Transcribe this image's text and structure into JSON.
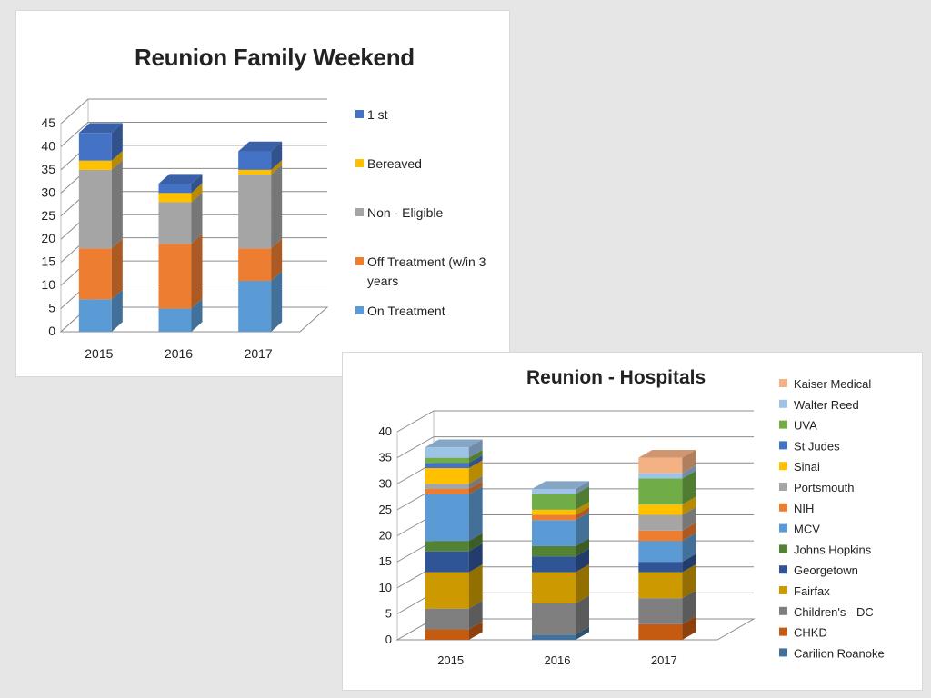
{
  "chart_data": [
    {
      "type": "bar",
      "stacked": true,
      "three_d": true,
      "title": "Reunion Family Weekend",
      "categories": [
        "2015",
        "2016",
        "2017"
      ],
      "ylim": [
        0,
        45
      ],
      "yticks": [
        "0",
        "5",
        "10",
        "15",
        "20",
        "25",
        "30",
        "35",
        "40",
        "45"
      ],
      "grid": true,
      "legend_position": "right",
      "series": [
        {
          "name": "On Treatment",
          "color": "#5b9bd5",
          "values": [
            7,
            5,
            11
          ]
        },
        {
          "name": "Off Treatment (w/in 3 years",
          "color": "#ed7d31",
          "values": [
            11,
            14,
            7
          ]
        },
        {
          "name": "Non - Eligible",
          "color": "#a5a5a5",
          "values": [
            17,
            9,
            16
          ]
        },
        {
          "name": "Bereaved",
          "color": "#ffc000",
          "values": [
            2,
            2,
            1
          ]
        },
        {
          "name": "1 st",
          "color": "#4472c4",
          "values": [
            6,
            2,
            4
          ]
        }
      ]
    },
    {
      "type": "bar",
      "stacked": true,
      "three_d": true,
      "title": "Reunion - Hospitals",
      "categories": [
        "2015",
        "2016",
        "2017"
      ],
      "ylim": [
        0,
        40
      ],
      "yticks": [
        "0",
        "5",
        "10",
        "15",
        "20",
        "25",
        "30",
        "35",
        "40"
      ],
      "grid": true,
      "legend_position": "right",
      "series": [
        {
          "name": "Carilion Roanoke",
          "color": "#41719c",
          "values": [
            0,
            1,
            0
          ]
        },
        {
          "name": "CHKD",
          "color": "#c55a11",
          "values": [
            2,
            0,
            3
          ]
        },
        {
          "name": "Children's - DC",
          "color": "#7f7f7f",
          "values": [
            4,
            6,
            5
          ]
        },
        {
          "name": "Fairfax",
          "color": "#cc9900",
          "values": [
            7,
            6,
            5
          ]
        },
        {
          "name": "Georgetown",
          "color": "#2f5597",
          "values": [
            4,
            3,
            2
          ]
        },
        {
          "name": "Johns Hopkins",
          "color": "#548235",
          "values": [
            2,
            2,
            0
          ]
        },
        {
          "name": "MCV",
          "color": "#5b9bd5",
          "values": [
            9,
            5,
            4
          ]
        },
        {
          "name": "NIH",
          "color": "#ed7d31",
          "values": [
            1,
            1,
            2
          ]
        },
        {
          "name": "Portsmouth",
          "color": "#a5a5a5",
          "values": [
            1,
            0,
            3
          ]
        },
        {
          "name": "Sinai",
          "color": "#ffc000",
          "values": [
            3,
            1,
            2
          ]
        },
        {
          "name": "St Judes",
          "color": "#4472c4",
          "values": [
            1,
            0,
            0
          ]
        },
        {
          "name": "UVA",
          "color": "#70ad47",
          "values": [
            1,
            3,
            5
          ]
        },
        {
          "name": "Walter Reed",
          "color": "#9dc3e6",
          "values": [
            2,
            1,
            1
          ]
        },
        {
          "name": "Kaiser Medical",
          "color": "#f4b183",
          "values": [
            0,
            0,
            3
          ]
        }
      ]
    }
  ]
}
